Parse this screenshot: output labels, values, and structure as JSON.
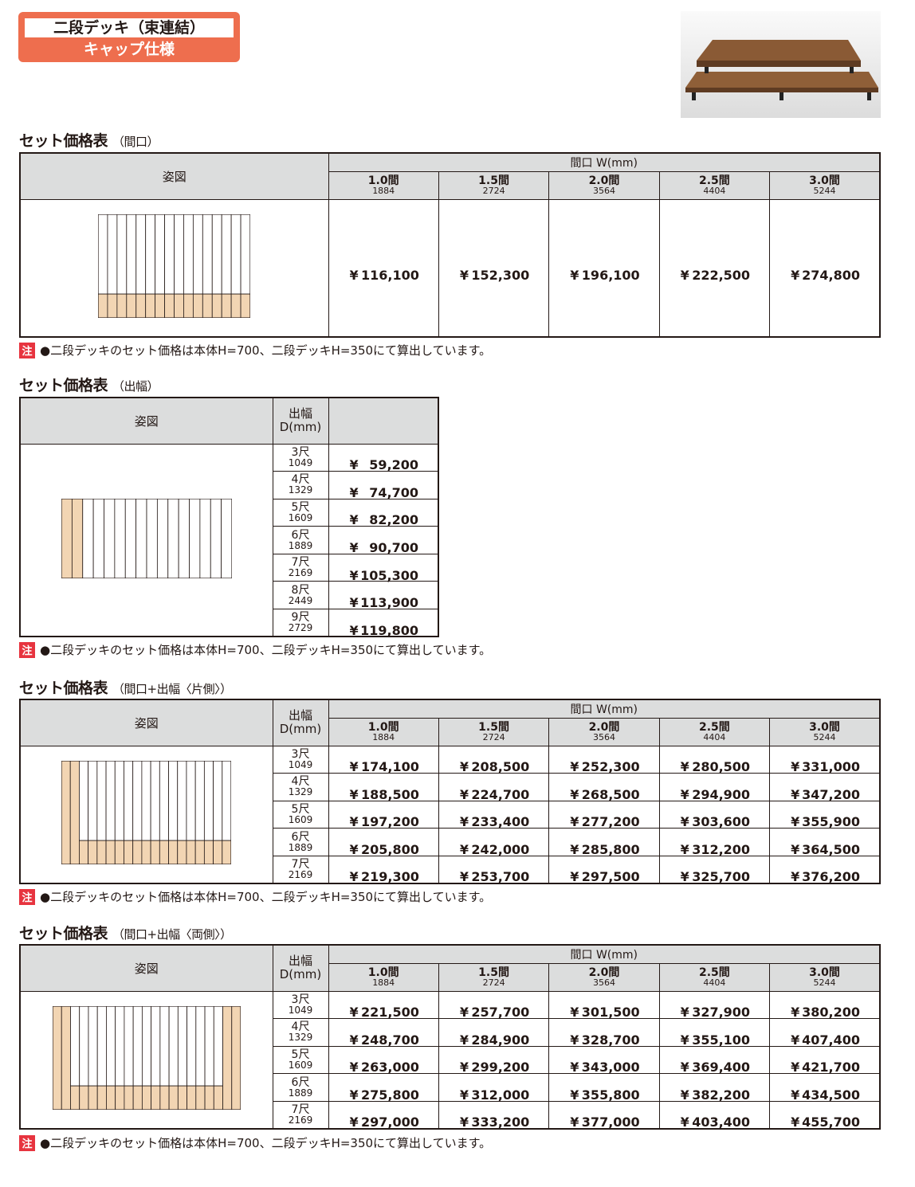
{
  "header": {
    "title": "二段デッキ（束連結）",
    "subtitle": "キャップ仕様"
  },
  "common": {
    "figure_label": "姿図",
    "width_label": "間口 W(mm)",
    "depth_label_1": "出幅",
    "depth_label_2": "D(mm)",
    "yen": "¥",
    "note_tag": "注",
    "note": "●二段デッキのセット価格は本体H=700、二段デッキH=350にて算出しています。"
  },
  "widths": [
    {
      "label": "1.0間",
      "mm": "1884"
    },
    {
      "label": "1.5間",
      "mm": "2724"
    },
    {
      "label": "2.0間",
      "mm": "3564"
    },
    {
      "label": "2.5間",
      "mm": "4404"
    },
    {
      "label": "3.0間",
      "mm": "5244"
    }
  ],
  "depths": [
    {
      "label": "3尺",
      "mm": "1049"
    },
    {
      "label": "4尺",
      "mm": "1329"
    },
    {
      "label": "5尺",
      "mm": "1609"
    },
    {
      "label": "6尺",
      "mm": "1889"
    },
    {
      "label": "7尺",
      "mm": "2169"
    },
    {
      "label": "8尺",
      "mm": "2449"
    },
    {
      "label": "9尺",
      "mm": "2729"
    }
  ],
  "tables": [
    {
      "title": "セット価格表",
      "sub": "（間口）",
      "prices": [
        "116,100",
        "152,300",
        "196,100",
        "222,500",
        "274,800"
      ]
    },
    {
      "title": "セット価格表",
      "sub": "（出幅）",
      "prices": [
        "59,200",
        "74,700",
        "82,200",
        "90,700",
        "105,300",
        "113,900",
        "119,800"
      ]
    },
    {
      "title": "セット価格表",
      "sub": "（間口+出幅〈片側〉）",
      "prices": [
        [
          "174,100",
          "208,500",
          "252,300",
          "280,500",
          "331,000"
        ],
        [
          "188,500",
          "224,700",
          "268,500",
          "294,900",
          "347,200"
        ],
        [
          "197,200",
          "233,400",
          "277,200",
          "303,600",
          "355,900"
        ],
        [
          "205,800",
          "242,000",
          "285,800",
          "312,200",
          "364,500"
        ],
        [
          "219,300",
          "253,700",
          "297,500",
          "325,700",
          "376,200"
        ]
      ]
    },
    {
      "title": "セット価格表",
      "sub": "（間口+出幅〈両側〉）",
      "prices": [
        [
          "221,500",
          "257,700",
          "301,500",
          "327,900",
          "380,200"
        ],
        [
          "248,700",
          "284,900",
          "328,700",
          "355,100",
          "407,400"
        ],
        [
          "263,000",
          "299,200",
          "343,000",
          "369,400",
          "421,700"
        ],
        [
          "275,800",
          "312,000",
          "355,800",
          "382,200",
          "434,500"
        ],
        [
          "297,000",
          "333,200",
          "377,000",
          "403,400",
          "455,700"
        ]
      ]
    }
  ],
  "colors": {
    "badge": "#ee6e4e",
    "header_bg": "#dcdddd",
    "tan": "#f2d5b3",
    "note_tag": "#e7343f"
  }
}
